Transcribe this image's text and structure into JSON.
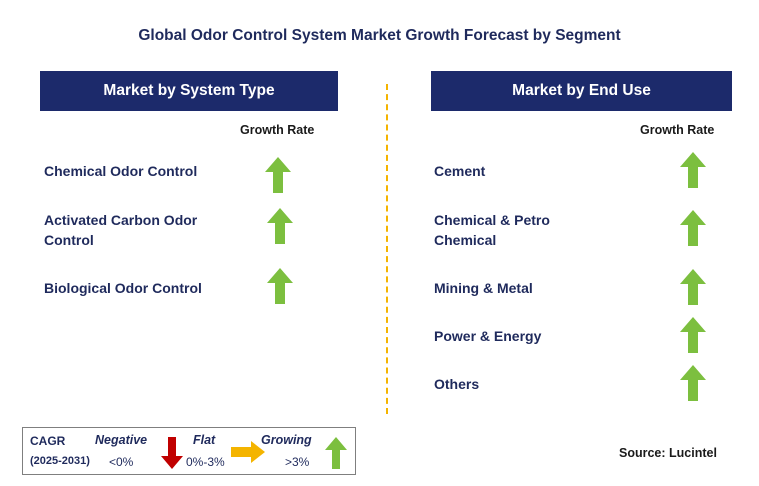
{
  "title": "Global Odor Control System Market Growth Forecast by Segment",
  "left_panel": {
    "header": "Market by System Type",
    "growth_label": "Growth Rate",
    "items": [
      {
        "label_line1": "Chemical Odor Control",
        "label_line2": "",
        "trend": "growing"
      },
      {
        "label_line1": "Activated Carbon Odor",
        "label_line2": "Control",
        "trend": "growing"
      },
      {
        "label_line1": "Biological Odor Control",
        "label_line2": "",
        "trend": "growing"
      }
    ]
  },
  "right_panel": {
    "header": "Market by End Use",
    "growth_label": "Growth Rate",
    "items": [
      {
        "label_line1": "Cement",
        "label_line2": "",
        "trend": "growing"
      },
      {
        "label_line1": "Chemical & Petro",
        "label_line2": "Chemical",
        "trend": "growing"
      },
      {
        "label_line1": "Mining & Metal",
        "label_line2": "",
        "trend": "growing"
      },
      {
        "label_line1": "Power & Energy",
        "label_line2": "",
        "trend": "growing"
      },
      {
        "label_line1": "Others",
        "label_line2": "",
        "trend": "growing"
      }
    ]
  },
  "legend": {
    "cagr_label": "CAGR",
    "period": "(2025-2031)",
    "negative_label": "Negative",
    "negative_range": "<0%",
    "flat_label": "Flat",
    "flat_range": "0%-3%",
    "growing_label": "Growing",
    "growing_range": ">3%"
  },
  "source": "Source: Lucintel",
  "colors": {
    "header_bg": "#1c2a6b",
    "text": "#1f2a5c",
    "up_arrow": "#7cbf3f",
    "down_arrow": "#c00000",
    "flat_arrow": "#f4b400",
    "divider": "#f4b400"
  }
}
